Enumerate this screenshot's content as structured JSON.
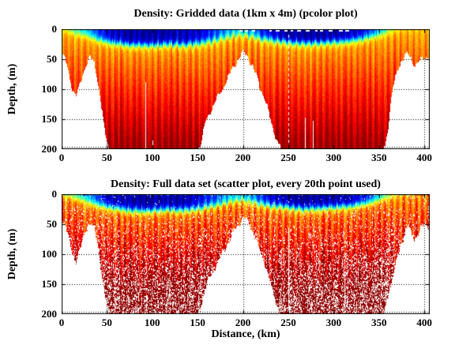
{
  "figure": {
    "background": "#ffffff",
    "text_color": "#000000",
    "grid_style": "dotted"
  },
  "chart_data": [
    {
      "type": "heatmap",
      "title": "Density: Gridded data (1km x 4m) (pcolor plot)",
      "xlabel": "",
      "ylabel": "Depth, (m)",
      "xlim": [
        0,
        406
      ],
      "ylim": [
        200,
        0
      ],
      "y_axis_reversed": true,
      "x_ticks": [
        0,
        50,
        100,
        150,
        200,
        250,
        300,
        350,
        400
      ],
      "y_ticks": [
        0,
        50,
        100,
        150,
        200
      ],
      "grid": "on",
      "legend": "none",
      "colormap": "jet",
      "colormap_hex": {
        "low": "#000080",
        "mid": "#ffff00",
        "high": "#800000"
      },
      "bathymetry_km_m": [
        [
          0,
          42
        ],
        [
          4,
          50
        ],
        [
          8,
          75
        ],
        [
          12,
          100
        ],
        [
          16,
          110
        ],
        [
          20,
          95
        ],
        [
          24,
          72
        ],
        [
          28,
          56
        ],
        [
          32,
          48
        ],
        [
          36,
          56
        ],
        [
          40,
          85
        ],
        [
          44,
          130
        ],
        [
          48,
          175
        ],
        [
          52,
          196
        ],
        [
          56,
          200
        ],
        [
          148,
          200
        ],
        [
          154,
          190
        ],
        [
          158,
          160
        ],
        [
          163,
          140
        ],
        [
          168,
          125
        ],
        [
          173,
          112
        ],
        [
          178,
          98
        ],
        [
          183,
          82
        ],
        [
          188,
          68
        ],
        [
          193,
          55
        ],
        [
          198,
          42
        ],
        [
          202,
          40
        ],
        [
          206,
          48
        ],
        [
          210,
          60
        ],
        [
          214,
          75
        ],
        [
          218,
          92
        ],
        [
          222,
          108
        ],
        [
          226,
          125
        ],
        [
          230,
          148
        ],
        [
          234,
          168
        ],
        [
          238,
          188
        ],
        [
          242,
          198
        ],
        [
          245,
          200
        ],
        [
          354,
          200
        ],
        [
          357,
          192
        ],
        [
          360,
          165
        ],
        [
          363,
          120
        ],
        [
          366,
          95
        ],
        [
          369,
          78
        ],
        [
          372,
          62
        ],
        [
          375,
          52
        ],
        [
          378,
          45
        ],
        [
          382,
          42
        ],
        [
          385,
          48
        ],
        [
          388,
          56
        ],
        [
          391,
          60
        ],
        [
          394,
          54
        ],
        [
          397,
          50
        ],
        [
          400,
          46
        ],
        [
          406,
          44
        ]
      ],
      "pycnocline_km_m": [
        [
          0,
          2
        ],
        [
          8,
          4
        ],
        [
          16,
          7
        ],
        [
          24,
          9
        ],
        [
          32,
          13
        ],
        [
          40,
          17
        ],
        [
          48,
          20
        ],
        [
          60,
          23
        ],
        [
          75,
          26
        ],
        [
          95,
          27
        ],
        [
          115,
          25
        ],
        [
          135,
          26
        ],
        [
          150,
          24
        ],
        [
          160,
          21
        ],
        [
          170,
          18
        ],
        [
          180,
          14
        ],
        [
          190,
          11
        ],
        [
          200,
          9
        ],
        [
          210,
          12
        ],
        [
          220,
          16
        ],
        [
          230,
          18
        ],
        [
          240,
          20
        ],
        [
          252,
          22
        ],
        [
          265,
          24
        ],
        [
          285,
          23
        ],
        [
          305,
          21
        ],
        [
          320,
          19
        ],
        [
          332,
          16
        ],
        [
          342,
          12
        ],
        [
          352,
          8
        ],
        [
          360,
          5
        ],
        [
          370,
          3
        ],
        [
          380,
          2
        ],
        [
          406,
          2
        ]
      ],
      "surface_value_km": [
        [
          0,
          0.58
        ],
        [
          6,
          0.52
        ],
        [
          12,
          0.44
        ],
        [
          18,
          0.38
        ],
        [
          26,
          0.32
        ],
        [
          34,
          0.24
        ],
        [
          42,
          0.15
        ],
        [
          52,
          0.08
        ],
        [
          62,
          0.05
        ],
        [
          80,
          0.03
        ],
        [
          100,
          0.03
        ],
        [
          125,
          0.04
        ],
        [
          145,
          0.07
        ],
        [
          158,
          0.12
        ],
        [
          168,
          0.18
        ],
        [
          178,
          0.25
        ],
        [
          188,
          0.3
        ],
        [
          198,
          0.32
        ],
        [
          208,
          0.27
        ],
        [
          218,
          0.19
        ],
        [
          228,
          0.11
        ],
        [
          238,
          0.06
        ],
        [
          250,
          0.03
        ],
        [
          270,
          0.02
        ],
        [
          295,
          0.02
        ],
        [
          315,
          0.04
        ],
        [
          328,
          0.08
        ],
        [
          338,
          0.14
        ],
        [
          346,
          0.22
        ],
        [
          354,
          0.34
        ],
        [
          360,
          0.46
        ],
        [
          366,
          0.56
        ],
        [
          374,
          0.63
        ],
        [
          384,
          0.66
        ],
        [
          395,
          0.67
        ],
        [
          406,
          0.68
        ]
      ],
      "artifacts": {
        "surface_gap_ranges": [
          [
            196,
            214
          ],
          [
            229,
            318
          ]
        ],
        "missing_columns": [
          {
            "x": 92,
            "z0": 88,
            "dashed": false
          },
          {
            "x": 100,
            "z0": 185,
            "dashed": false
          },
          {
            "x": 250,
            "z0": 3,
            "dashed": true
          },
          {
            "x": 268,
            "z0": 148,
            "dashed": false
          },
          {
            "x": 277,
            "z0": 153,
            "dashed": false
          }
        ]
      },
      "seed": 1234567
    },
    {
      "type": "scatter",
      "title": "Density: Full data set (scatter plot, every 20th point used)",
      "xlabel": "Distance, (km)",
      "ylabel": "Depth, (m)",
      "xlim": [
        0,
        406
      ],
      "ylim": [
        200,
        0
      ],
      "y_axis_reversed": true,
      "x_ticks": [
        0,
        50,
        100,
        150,
        200,
        250,
        300,
        350,
        400
      ],
      "y_ticks": [
        0,
        50,
        100,
        150,
        200
      ],
      "grid": "on",
      "legend": "none",
      "colormap": "jet",
      "colormap_hex": {
        "low": "#000080",
        "mid": "#ffff00",
        "high": "#800000"
      },
      "bathymetry_km_m": [
        [
          0,
          42
        ],
        [
          4,
          50
        ],
        [
          8,
          75
        ],
        [
          12,
          100
        ],
        [
          16,
          110
        ],
        [
          20,
          95
        ],
        [
          24,
          72
        ],
        [
          28,
          56
        ],
        [
          32,
          48
        ],
        [
          36,
          56
        ],
        [
          40,
          85
        ],
        [
          44,
          130
        ],
        [
          48,
          175
        ],
        [
          52,
          196
        ],
        [
          56,
          200
        ],
        [
          148,
          200
        ],
        [
          154,
          190
        ],
        [
          158,
          160
        ],
        [
          163,
          140
        ],
        [
          168,
          125
        ],
        [
          173,
          112
        ],
        [
          178,
          98
        ],
        [
          183,
          82
        ],
        [
          188,
          68
        ],
        [
          193,
          55
        ],
        [
          198,
          42
        ],
        [
          202,
          40
        ],
        [
          206,
          48
        ],
        [
          210,
          60
        ],
        [
          214,
          75
        ],
        [
          218,
          92
        ],
        [
          222,
          108
        ],
        [
          226,
          125
        ],
        [
          230,
          148
        ],
        [
          234,
          168
        ],
        [
          238,
          188
        ],
        [
          242,
          198
        ],
        [
          245,
          200
        ],
        [
          354,
          200
        ],
        [
          358,
          188
        ],
        [
          362,
          158
        ],
        [
          366,
          130
        ],
        [
          370,
          108
        ],
        [
          374,
          88
        ],
        [
          378,
          66
        ],
        [
          381,
          55
        ],
        [
          384,
          58
        ],
        [
          387,
          72
        ],
        [
          389,
          78
        ],
        [
          391,
          70
        ],
        [
          394,
          60
        ],
        [
          397,
          54
        ],
        [
          400,
          52
        ],
        [
          406,
          55
        ]
      ],
      "pycnocline_km_m": [
        [
          0,
          2
        ],
        [
          8,
          4
        ],
        [
          16,
          7
        ],
        [
          24,
          9
        ],
        [
          32,
          13
        ],
        [
          40,
          17
        ],
        [
          48,
          20
        ],
        [
          60,
          23
        ],
        [
          75,
          26
        ],
        [
          95,
          27
        ],
        [
          115,
          25
        ],
        [
          135,
          26
        ],
        [
          150,
          24
        ],
        [
          160,
          21
        ],
        [
          170,
          18
        ],
        [
          180,
          14
        ],
        [
          190,
          11
        ],
        [
          200,
          9
        ],
        [
          210,
          12
        ],
        [
          220,
          16
        ],
        [
          230,
          18
        ],
        [
          240,
          20
        ],
        [
          252,
          22
        ],
        [
          265,
          24
        ],
        [
          285,
          23
        ],
        [
          305,
          21
        ],
        [
          320,
          19
        ],
        [
          332,
          16
        ],
        [
          342,
          12
        ],
        [
          352,
          8
        ],
        [
          360,
          5
        ],
        [
          370,
          3
        ],
        [
          380,
          2
        ],
        [
          406,
          2
        ]
      ],
      "surface_value_km": [
        [
          0,
          0.58
        ],
        [
          6,
          0.52
        ],
        [
          12,
          0.44
        ],
        [
          18,
          0.38
        ],
        [
          26,
          0.32
        ],
        [
          34,
          0.24
        ],
        [
          42,
          0.15
        ],
        [
          52,
          0.08
        ],
        [
          62,
          0.05
        ],
        [
          80,
          0.03
        ],
        [
          100,
          0.03
        ],
        [
          125,
          0.04
        ],
        [
          145,
          0.07
        ],
        [
          158,
          0.12
        ],
        [
          168,
          0.18
        ],
        [
          178,
          0.25
        ],
        [
          188,
          0.3
        ],
        [
          198,
          0.32
        ],
        [
          208,
          0.27
        ],
        [
          218,
          0.19
        ],
        [
          228,
          0.11
        ],
        [
          238,
          0.06
        ],
        [
          250,
          0.03
        ],
        [
          270,
          0.02
        ],
        [
          295,
          0.02
        ],
        [
          315,
          0.04
        ],
        [
          328,
          0.08
        ],
        [
          338,
          0.14
        ],
        [
          346,
          0.22
        ],
        [
          354,
          0.34
        ],
        [
          360,
          0.46
        ],
        [
          366,
          0.56
        ],
        [
          374,
          0.63
        ],
        [
          384,
          0.66
        ],
        [
          395,
          0.67
        ],
        [
          406,
          0.68
        ]
      ],
      "artifacts": {
        "surface_gap_ranges": [],
        "missing_columns": [
          {
            "x": 250,
            "z0": 55,
            "dashed": false
          },
          {
            "x": 312,
            "z0": 130,
            "dashed": false
          }
        ]
      },
      "seed": 424242
    }
  ]
}
